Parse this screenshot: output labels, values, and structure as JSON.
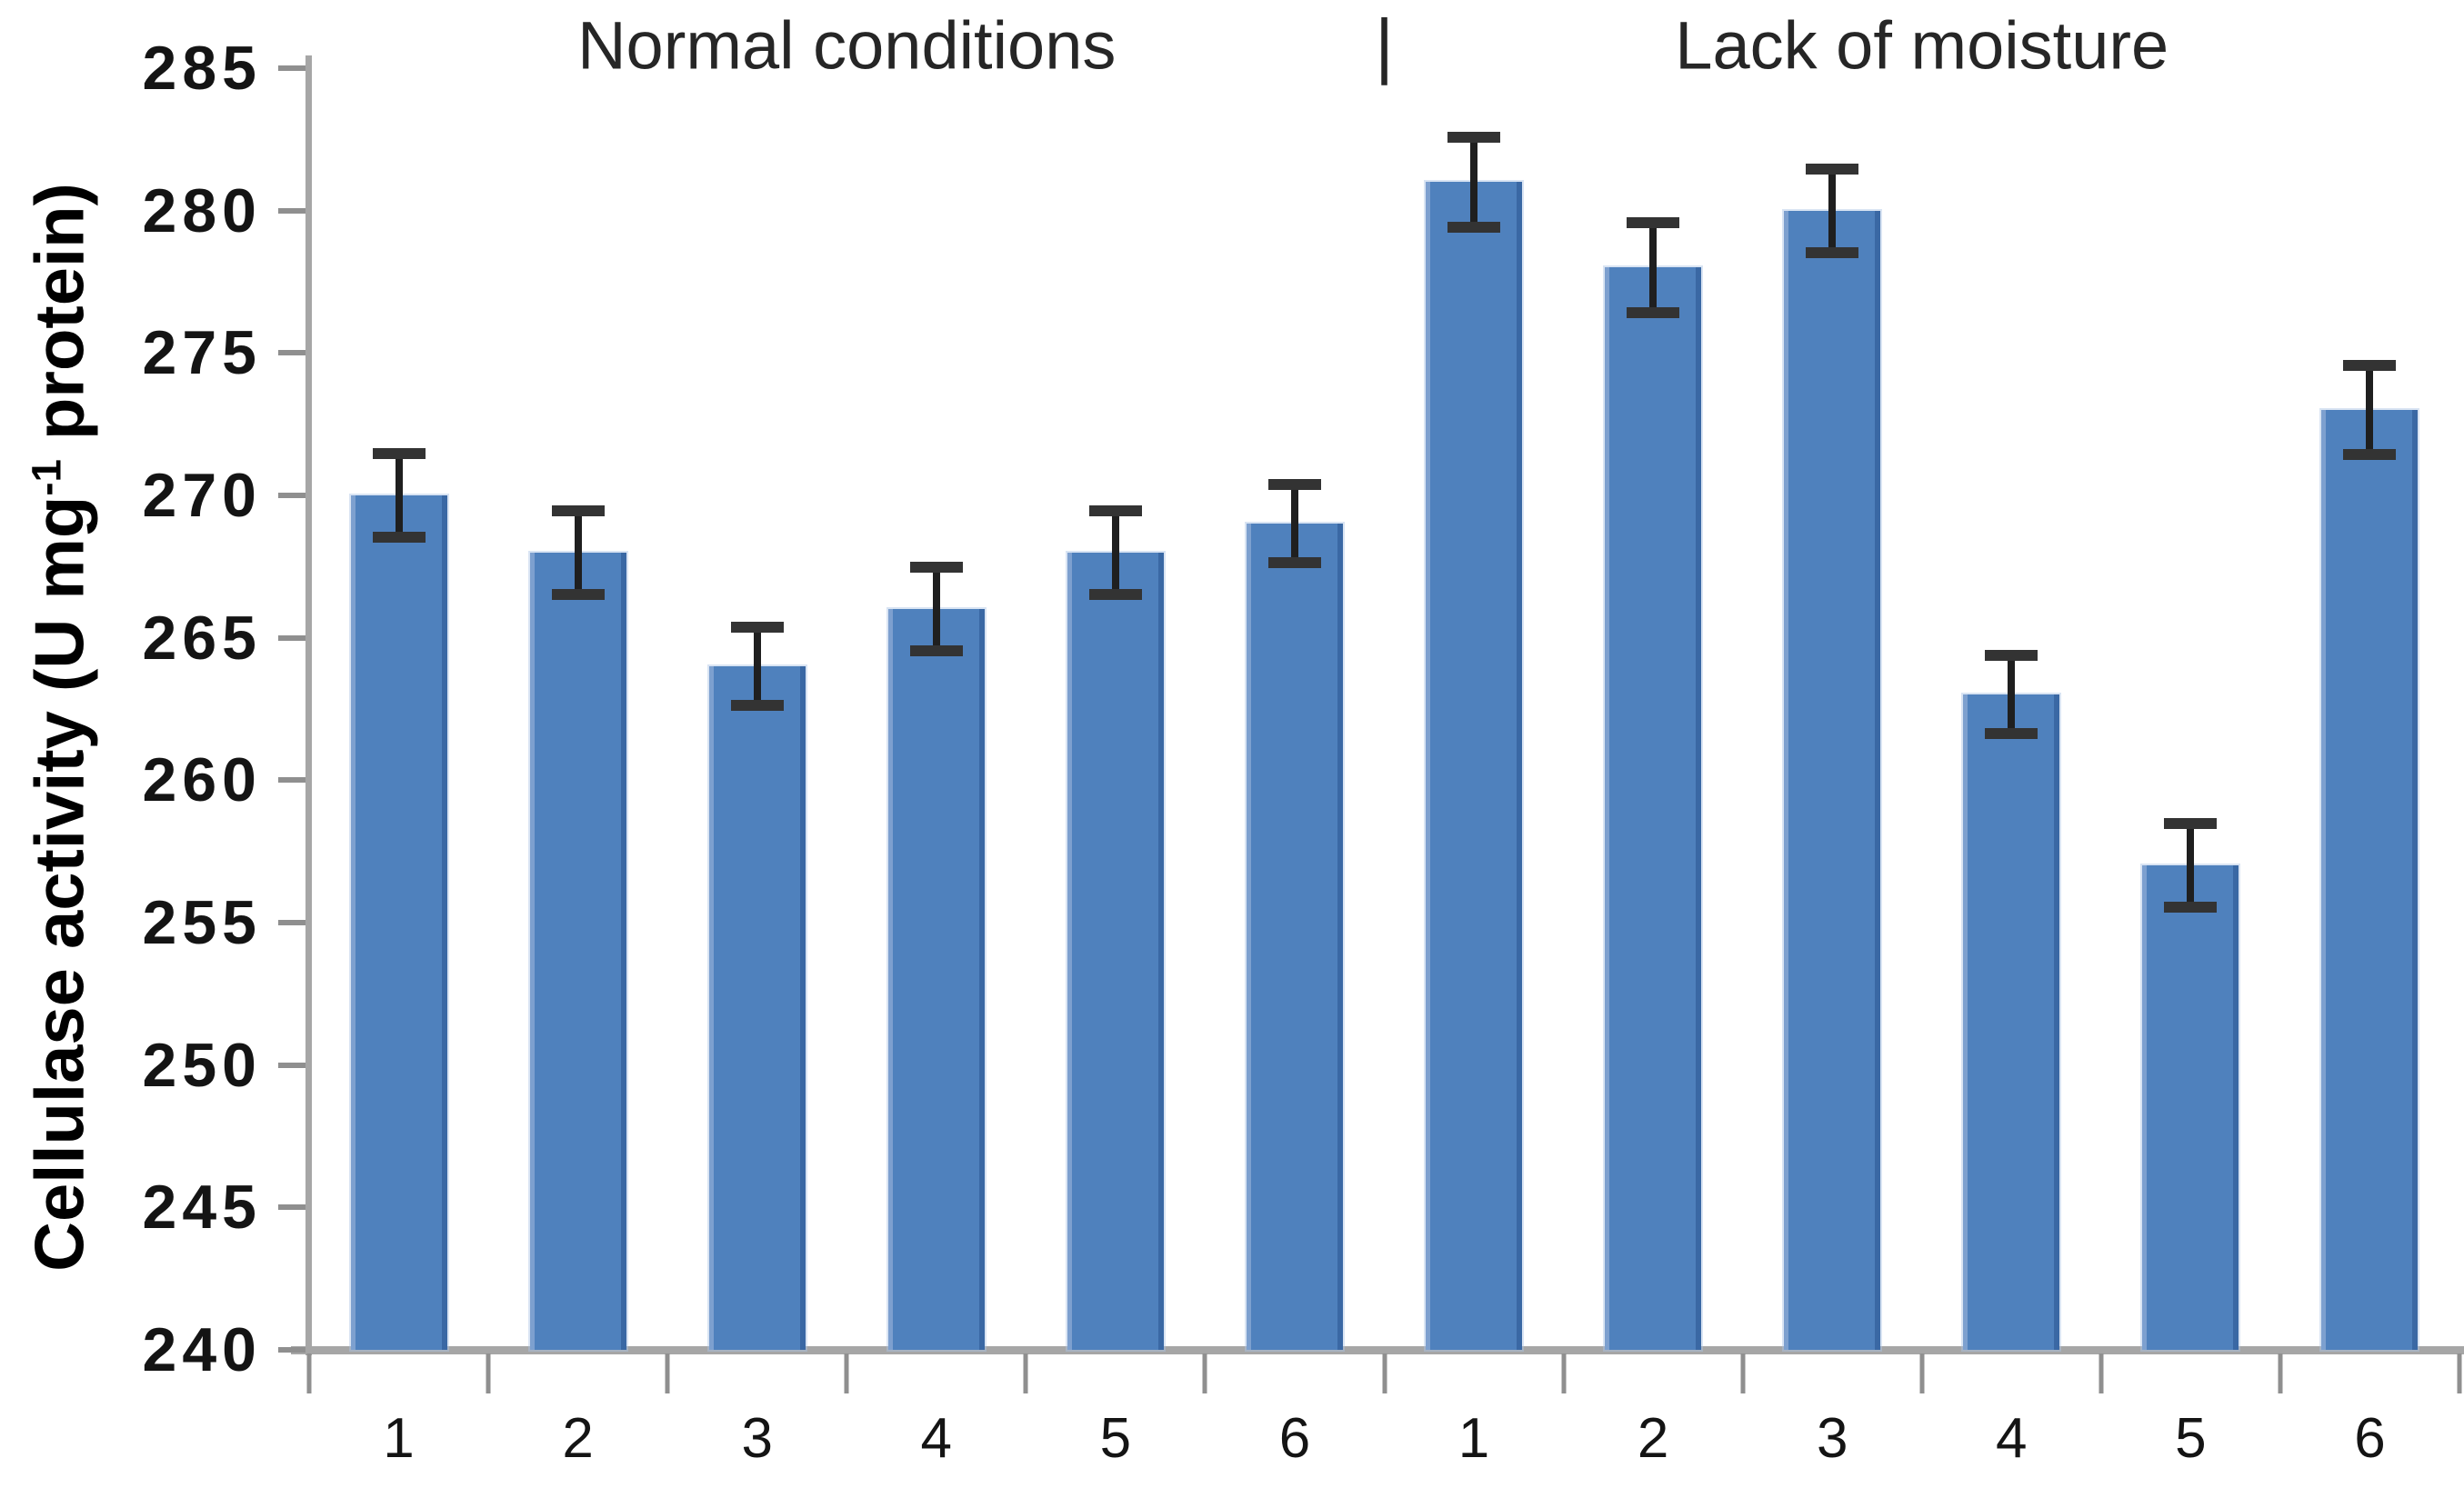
{
  "chart_data": {
    "type": "bar",
    "ylabel": {
      "prefix": "Cellulase activity (U mg",
      "superscript": "-1",
      "suffix": " protein)"
    },
    "yaxis": {
      "min": 240,
      "max": 285,
      "step": 5,
      "tick_labels": [
        285,
        280,
        275,
        270,
        265,
        260,
        255,
        250,
        245,
        240
      ]
    },
    "separator": "|",
    "groups": [
      {
        "label": "Normal conditions",
        "categories": [
          "1",
          "2",
          "3",
          "4",
          "5",
          "6"
        ],
        "values": [
          270,
          268,
          264,
          266,
          268,
          269
        ],
        "errors": [
          1.6,
          1.6,
          1.5,
          1.6,
          1.6,
          1.5
        ]
      },
      {
        "label": "Lack of moisture",
        "categories": [
          "1",
          "2",
          "3",
          "4",
          "5",
          "6"
        ],
        "values": [
          281,
          278,
          280,
          263,
          257,
          273
        ],
        "errors": [
          1.7,
          1.7,
          1.6,
          1.5,
          1.6,
          1.7
        ]
      }
    ],
    "grid": false,
    "legend_position": "none",
    "colors": {
      "bar_fill": "#4F81BD",
      "bar_edge_dark": "#3A68A4",
      "bar_edge_light": "#7DA0CF",
      "error_bar": "#1F1F1F",
      "error_cap": "#333333",
      "axis_line": "#A6A6A6",
      "tick_mark": "#8F8F8F",
      "text": "#1A1A1A"
    }
  }
}
